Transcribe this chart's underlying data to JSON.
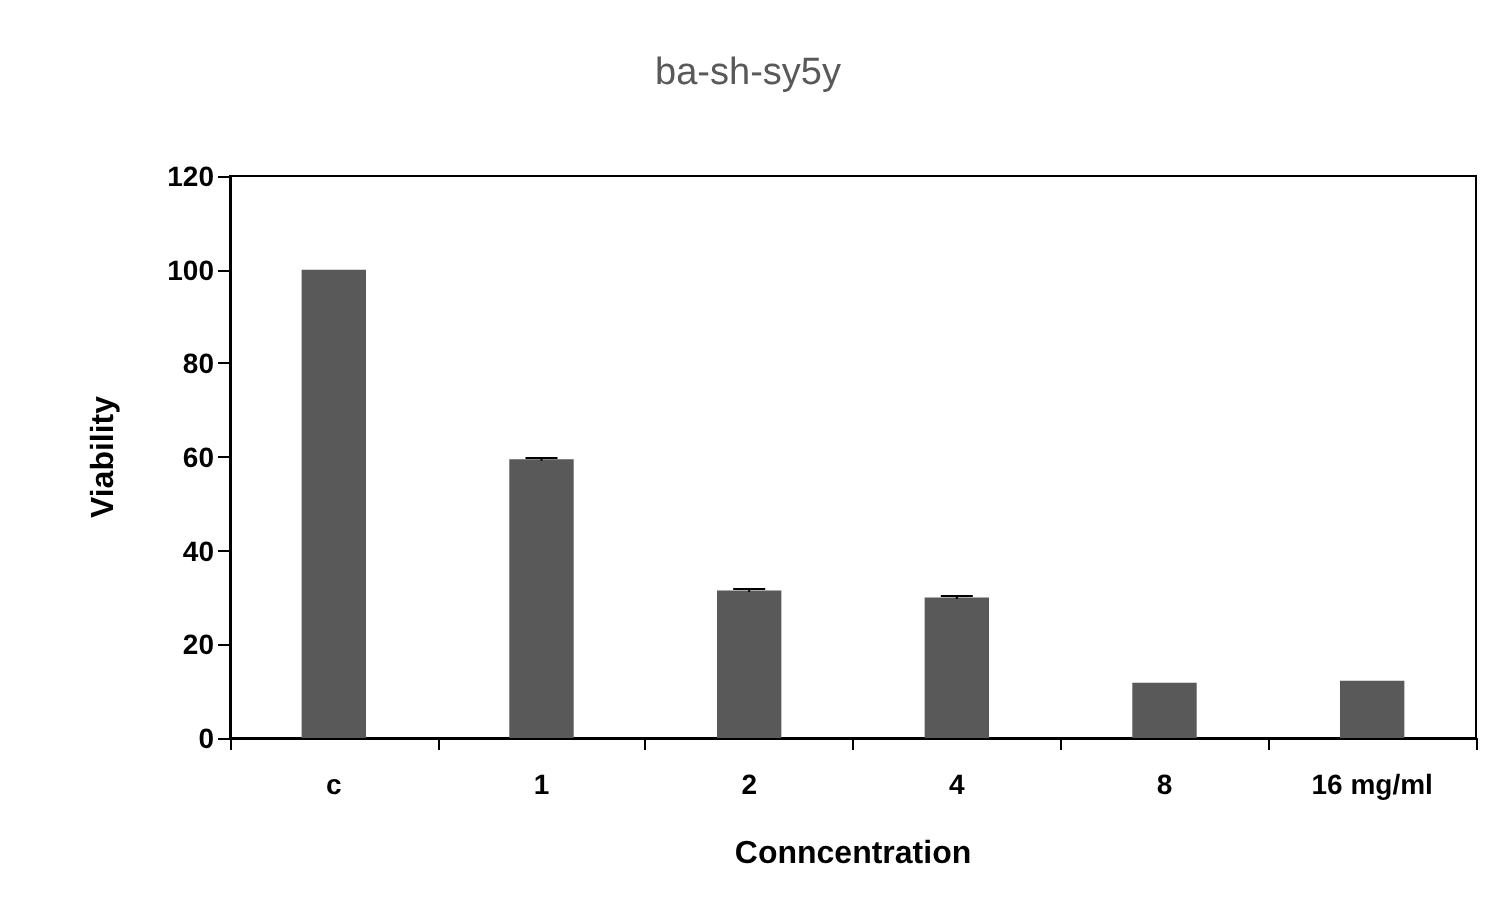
{
  "chart_data": {
    "type": "bar",
    "title": "ba-sh-sy5y",
    "xlabel": "Conncentration",
    "ylabel": "Viability",
    "categories": [
      "c",
      "1",
      "2",
      "4",
      "8",
      "16 mg/ml"
    ],
    "values": [
      100,
      59.5,
      31.5,
      30,
      11.8,
      12.2
    ],
    "errors": [
      null,
      0.3,
      0.3,
      0.3,
      null,
      null
    ],
    "color": "#595959",
    "ylim": [
      0,
      120
    ],
    "yticks": [
      0,
      20,
      40,
      60,
      80,
      100,
      120
    ],
    "grid": false
  }
}
